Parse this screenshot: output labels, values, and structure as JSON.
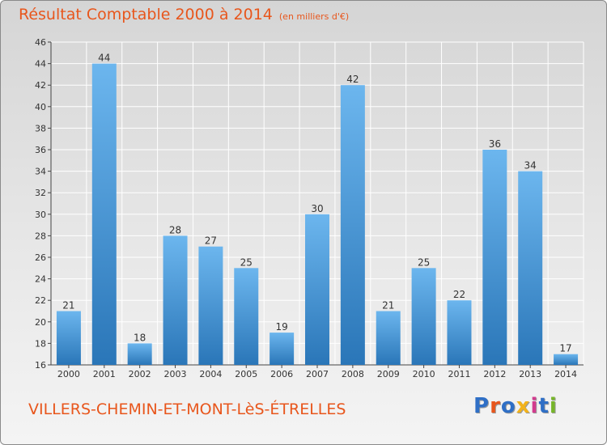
{
  "header": {
    "title": "Résultat Comptable 2000 à 2014",
    "subtitle": "(en milliers d'€)"
  },
  "footer": {
    "commune": "VILLERS-CHEMIN-ET-MONT-LèS-ÉTRELLES",
    "logo": "Proxiti",
    "logo_colors": [
      "#2f6fc6",
      "#e8561c",
      "#2f6fc6",
      "#f2b21b",
      "#d23b8e",
      "#2f6fc6",
      "#77b52a"
    ]
  },
  "colors": {
    "bar": "#3b8fd4",
    "bar_light": "#6cb6ee",
    "bar_dark": "#2a76b8",
    "title": "#e8561c",
    "grid": "#ffffff"
  },
  "chart_data": {
    "type": "bar",
    "categories": [
      "2000",
      "2001",
      "2002",
      "2003",
      "2004",
      "2005",
      "2006",
      "2007",
      "2008",
      "2009",
      "2010",
      "2011",
      "2012",
      "2013",
      "2014"
    ],
    "values": [
      21,
      44,
      18,
      28,
      27,
      25,
      19,
      30,
      42,
      21,
      25,
      22,
      36,
      34,
      17
    ],
    "ylim": [
      16,
      46
    ],
    "yticks": [
      16,
      18,
      20,
      22,
      24,
      26,
      28,
      30,
      32,
      34,
      36,
      38,
      40,
      42,
      44,
      46
    ],
    "grid": true,
    "data_labels": true
  }
}
